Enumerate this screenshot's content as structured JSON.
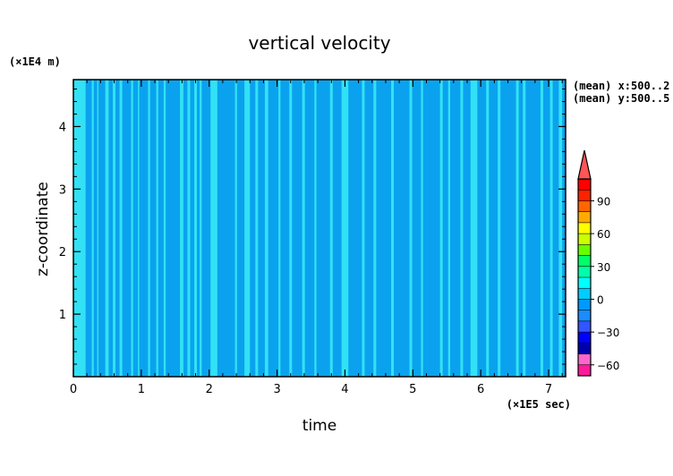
{
  "chart_data": {
    "type": "heatmap",
    "title": "vertical velocity",
    "xlabel": "time",
    "ylabel": "z-coordinate",
    "x_unit": "(×1E5 sec)",
    "y_unit": "(×1E4 m)",
    "xlim": [
      0,
      7.25
    ],
    "ylim": [
      0,
      4.75
    ],
    "x_ticks": [
      "0",
      "1",
      "2",
      "3",
      "4",
      "5",
      "6",
      "7"
    ],
    "y_ticks": [
      "1",
      "2",
      "3",
      "4"
    ],
    "annotations": [
      "(mean) x:500..2",
      "(mean) y:500..5"
    ],
    "colorbar": {
      "tick_labels": [
        "90",
        "60",
        "30",
        "0",
        "−30",
        "−60"
      ],
      "tick_values": [
        90,
        60,
        30,
        0,
        -30,
        -60
      ],
      "range": [
        -70,
        110
      ],
      "extend": "max",
      "colors": [
        "#ff1a99",
        "#ff66cc",
        "#0000aa",
        "#0000ff",
        "#3355ff",
        "#1a8cff",
        "#0099ff",
        "#00ccff",
        "#00ffff",
        "#00ffaa",
        "#00ff66",
        "#66ff00",
        "#ccff00",
        "#ffff00",
        "#ffaa00",
        "#ff6600",
        "#ff2200",
        "#ff0000"
      ],
      "extend_color": "#ff5555"
    },
    "field": {
      "background_color": "#0aa2ee",
      "stripe_color": "#39ecf6",
      "stripe_intervals_x": [
        [
          0,
          0.18
        ],
        [
          0.27,
          0.3
        ],
        [
          0.35,
          0.37
        ],
        [
          0.47,
          0.52
        ],
        [
          0.58,
          0.62
        ],
        [
          0.68,
          0.72
        ],
        [
          0.85,
          0.88
        ],
        [
          0.95,
          0.97
        ],
        [
          1.1,
          1.13
        ],
        [
          1.22,
          1.25
        ],
        [
          1.33,
          1.36
        ],
        [
          1.57,
          1.62
        ],
        [
          1.68,
          1.72
        ],
        [
          1.78,
          1.82
        ],
        [
          1.86,
          1.89
        ],
        [
          2.02,
          2.12
        ],
        [
          2.38,
          2.41
        ],
        [
          2.52,
          2.6
        ],
        [
          2.68,
          2.72
        ],
        [
          2.82,
          2.87
        ],
        [
          3.02,
          3.05
        ],
        [
          3.18,
          3.22
        ],
        [
          3.37,
          3.41
        ],
        [
          3.55,
          3.58
        ],
        [
          3.78,
          3.82
        ],
        [
          3.95,
          4.05
        ],
        [
          4.25,
          4.29
        ],
        [
          4.42,
          4.46
        ],
        [
          4.68,
          4.72
        ],
        [
          4.95,
          4.99
        ],
        [
          5.12,
          5.15
        ],
        [
          5.4,
          5.44
        ],
        [
          5.52,
          5.55
        ],
        [
          5.7,
          5.74
        ],
        [
          5.85,
          5.95
        ],
        [
          6.08,
          6.12
        ],
        [
          6.25,
          6.29
        ],
        [
          6.52,
          6.56
        ],
        [
          6.62,
          6.66
        ],
        [
          6.88,
          6.92
        ],
        [
          7.02,
          7.06
        ],
        [
          7.15,
          7.2
        ]
      ]
    }
  }
}
